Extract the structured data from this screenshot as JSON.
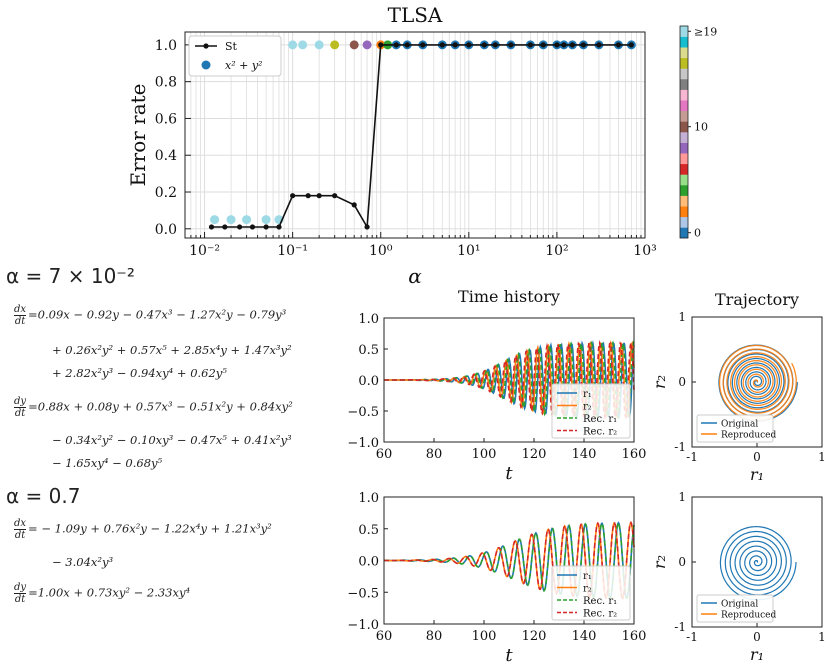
{
  "chart_data": [
    {
      "type": "line",
      "id": "tlsa",
      "title": "TLSA",
      "xlabel": "α",
      "ylabel": "Error rate",
      "xscale": "log",
      "xlim": [
        0.006,
        1000
      ],
      "ylim": [
        -0.05,
        1.07
      ],
      "xticks": [
        0.01,
        0.1,
        1,
        10,
        100,
        1000
      ],
      "xtick_labels": [
        "10⁻²",
        "10⁻¹",
        "10⁰",
        "10¹",
        "10²",
        "10³"
      ],
      "yticks": [
        0.0,
        0.2,
        0.4,
        0.6,
        0.8,
        1.0
      ],
      "ytick_labels": [
        "0.0",
        "0.2",
        "0.4",
        "0.6",
        "0.8",
        "1.0"
      ],
      "grid": true,
      "legend_position": "top-left",
      "series": [
        {
          "name": "St",
          "style": "line-marker",
          "color": "#111111",
          "x": [
            0.012,
            0.017,
            0.025,
            0.035,
            0.05,
            0.07,
            0.1,
            0.15,
            0.2,
            0.3,
            0.5,
            0.7,
            1.0,
            1.5,
            2,
            3,
            5,
            7,
            10,
            15,
            20,
            30,
            50,
            70,
            100,
            120,
            150,
            200,
            300,
            500,
            700
          ],
          "y": [
            0.01,
            0.01,
            0.01,
            0.01,
            0.01,
            0.01,
            0.18,
            0.18,
            0.18,
            0.18,
            0.13,
            0.01,
            1.0,
            1.0,
            1.0,
            1.0,
            1.0,
            1.0,
            1.0,
            1.0,
            1.0,
            1.0,
            1.0,
            1.0,
            1.0,
            1.0,
            1.0,
            1.0,
            1.0,
            1.0,
            1.0
          ]
        },
        {
          "name": "x² + y²",
          "style": "scatter",
          "color": "#1f77b4",
          "points": [
            {
              "x": 0.013,
              "y": 0.05,
              "color": "#9edae5"
            },
            {
              "x": 0.02,
              "y": 0.05,
              "color": "#9edae5"
            },
            {
              "x": 0.03,
              "y": 0.05,
              "color": "#9edae5"
            },
            {
              "x": 0.05,
              "y": 0.05,
              "color": "#9edae5"
            },
            {
              "x": 0.07,
              "y": 0.05,
              "color": "#9edae5"
            },
            {
              "x": 0.1,
              "y": 1.0,
              "color": "#9edae5"
            },
            {
              "x": 0.13,
              "y": 1.0,
              "color": "#9edae5"
            },
            {
              "x": 0.2,
              "y": 1.0,
              "color": "#9edae5"
            },
            {
              "x": 0.3,
              "y": 1.0,
              "color": "#bcbd22"
            },
            {
              "x": 0.5,
              "y": 1.0,
              "color": "#8c564b"
            },
            {
              "x": 0.7,
              "y": 1.0,
              "color": "#9467bd"
            },
            {
              "x": 1.0,
              "y": 1.0,
              "color": "#ff7f0e"
            },
            {
              "x": 1.2,
              "y": 1.0,
              "color": "#2ca02c"
            },
            {
              "x": 1.5,
              "y": 1.0,
              "color": "#1f77b4"
            },
            {
              "x": 2,
              "y": 1.0,
              "color": "#1f77b4"
            },
            {
              "x": 3,
              "y": 1.0,
              "color": "#1f77b4"
            },
            {
              "x": 5,
              "y": 1.0,
              "color": "#1f77b4"
            },
            {
              "x": 7,
              "y": 1.0,
              "color": "#1f77b4"
            },
            {
              "x": 10,
              "y": 1.0,
              "color": "#1f77b4"
            },
            {
              "x": 15,
              "y": 1.0,
              "color": "#1f77b4"
            },
            {
              "x": 20,
              "y": 1.0,
              "color": "#1f77b4"
            },
            {
              "x": 30,
              "y": 1.0,
              "color": "#1f77b4"
            },
            {
              "x": 50,
              "y": 1.0,
              "color": "#1f77b4"
            },
            {
              "x": 70,
              "y": 1.0,
              "color": "#1f77b4"
            },
            {
              "x": 100,
              "y": 1.0,
              "color": "#1f77b4"
            },
            {
              "x": 120,
              "y": 1.0,
              "color": "#1f77b4"
            },
            {
              "x": 150,
              "y": 1.0,
              "color": "#1f77b4"
            },
            {
              "x": 200,
              "y": 1.0,
              "color": "#1f77b4"
            },
            {
              "x": 300,
              "y": 1.0,
              "color": "#1f77b4"
            },
            {
              "x": 500,
              "y": 1.0,
              "color": "#1f77b4"
            },
            {
              "x": 700,
              "y": 1.0,
              "color": "#1f77b4"
            }
          ]
        }
      ],
      "colorbar": {
        "tick_labels": [
          "0",
          "10",
          "≥19"
        ],
        "tick_values": [
          0,
          10,
          19
        ],
        "colors": [
          "#1f77b4",
          "#aec7e8",
          "#ff7f0e",
          "#ffbb78",
          "#2ca02c",
          "#98df8a",
          "#d62728",
          "#ff9896",
          "#9467bd",
          "#c5b0d5",
          "#8c564b",
          "#c49c94",
          "#e377c2",
          "#f7b6d2",
          "#7f7f7f",
          "#c7c7c7",
          "#bcbd22",
          "#dbdb8d",
          "#17becf",
          "#9edae5"
        ]
      }
    },
    {
      "type": "line",
      "id": "th1",
      "title": "Time history",
      "xlabel": "t",
      "xlim": [
        60,
        160
      ],
      "ylim": [
        -1.0,
        1.0
      ],
      "xticks": [
        60,
        80,
        100,
        120,
        140,
        160
      ],
      "yticks": [
        -1.0,
        -0.5,
        0.0,
        0.5,
        1.0
      ],
      "ytick_labels": [
        "−1.0",
        "−0.5",
        "0.0",
        "0.5",
        "1.0"
      ],
      "legend_position": "lower-right",
      "signal": {
        "omega": 1.5,
        "amp_max": 0.6,
        "growth_center": 108,
        "growth_width": 7,
        "phase2": 1.5708
      },
      "series": [
        {
          "name": "r₁",
          "color": "#1f77b4",
          "dash": "none",
          "phase": 0
        },
        {
          "name": "r₂",
          "color": "#ff7f0e",
          "dash": "none",
          "phase": 1.5708
        },
        {
          "name": "Rec. r₁",
          "color": "#2ca02c",
          "dash": "5,3",
          "phase": 0.6
        },
        {
          "name": "Rec. r₂",
          "color": "#d62728",
          "dash": "5,3",
          "phase": 2.17
        }
      ]
    },
    {
      "type": "line",
      "id": "th2",
      "xlabel": "t",
      "xlim": [
        60,
        160
      ],
      "ylim": [
        -1.0,
        1.0
      ],
      "xticks": [
        60,
        80,
        100,
        120,
        140,
        160
      ],
      "yticks": [
        -1.0,
        -0.5,
        0.0,
        0.5,
        1.0
      ],
      "ytick_labels": [
        "−1.0",
        "−0.5",
        "0.0",
        "0.5",
        "1.0"
      ],
      "legend_position": "lower-right",
      "signal": {
        "omega": 0.95,
        "amp_max": 0.6,
        "growth_center": 112,
        "growth_width": 9,
        "phase2": 1.5708
      },
      "series": [
        {
          "name": "r₁",
          "color": "#1f77b4",
          "dash": "none",
          "phase": 0
        },
        {
          "name": "r₂",
          "color": "#ff7f0e",
          "dash": "none",
          "phase": 1.5708
        },
        {
          "name": "Rec. r₁",
          "color": "#2ca02c",
          "dash": "5,3",
          "phase": 0
        },
        {
          "name": "Rec. r₂",
          "color": "#d62728",
          "dash": "5,3",
          "phase": 1.5708
        }
      ]
    },
    {
      "type": "line",
      "id": "traj1",
      "title": "Trajectory",
      "xlabel": "r₁",
      "ylabel": "r₂",
      "xlim": [
        -1,
        1
      ],
      "ylim": [
        -1,
        1
      ],
      "xticks": [
        -1,
        0,
        1
      ],
      "yticks": [
        -1,
        0,
        1
      ],
      "legend_position": "lower-left",
      "spiral": {
        "turns": 9,
        "r_max": 0.62
      },
      "series": [
        {
          "name": "Original",
          "color": "#1f77b4"
        },
        {
          "name": "Reproduced",
          "color": "#ff7f0e"
        }
      ]
    },
    {
      "type": "line",
      "id": "traj2",
      "xlabel": "r₁",
      "ylabel": "r₂",
      "xlim": [
        -1,
        1
      ],
      "ylim": [
        -1,
        1
      ],
      "xticks": [
        -1,
        0,
        1
      ],
      "yticks": [
        -1,
        0,
        1
      ],
      "legend_position": "lower-left",
      "spiral": {
        "turns": 8,
        "r_max": 0.6
      },
      "series": [
        {
          "name": "Original",
          "color": "#1f77b4"
        },
        {
          "name": "Reproduced",
          "color": "#ff7f0e"
        }
      ]
    }
  ],
  "equations": {
    "case1": {
      "label": "α = 7 × 10⁻²",
      "dx_num": "dx",
      "dx_den": "dt",
      "dx_lines": [
        "=0.09x − 0.92y − 0.47x³ − 1.27x²y − 0.79y³",
        "+ 0.26x²y² + 0.57x⁵ + 2.85x⁴y + 1.47x³y²",
        "+ 2.82x²y³ − 0.94xy⁴ + 0.62y⁵"
      ],
      "dy_num": "dy",
      "dy_den": "dt",
      "dy_lines": [
        "=0.88x + 0.08y + 0.57x³ − 0.51x²y + 0.84xy²",
        "− 0.34x²y² − 0.10xy³ − 0.47x⁵ + 0.41x²y³",
        "− 1.65xy⁴ − 0.68y⁵"
      ]
    },
    "case2": {
      "label": "α = 0.7",
      "dx_num": "dx",
      "dx_den": "dt",
      "dx_lines": [
        "= − 1.09y + 0.76x²y − 1.22x⁴y + 1.21x³y²",
        "− 3.04x²y³"
      ],
      "dy_num": "dy",
      "dy_den": "dt",
      "dy_lines": [
        "=1.00x + 0.73xy² − 2.33xy⁴"
      ]
    }
  }
}
